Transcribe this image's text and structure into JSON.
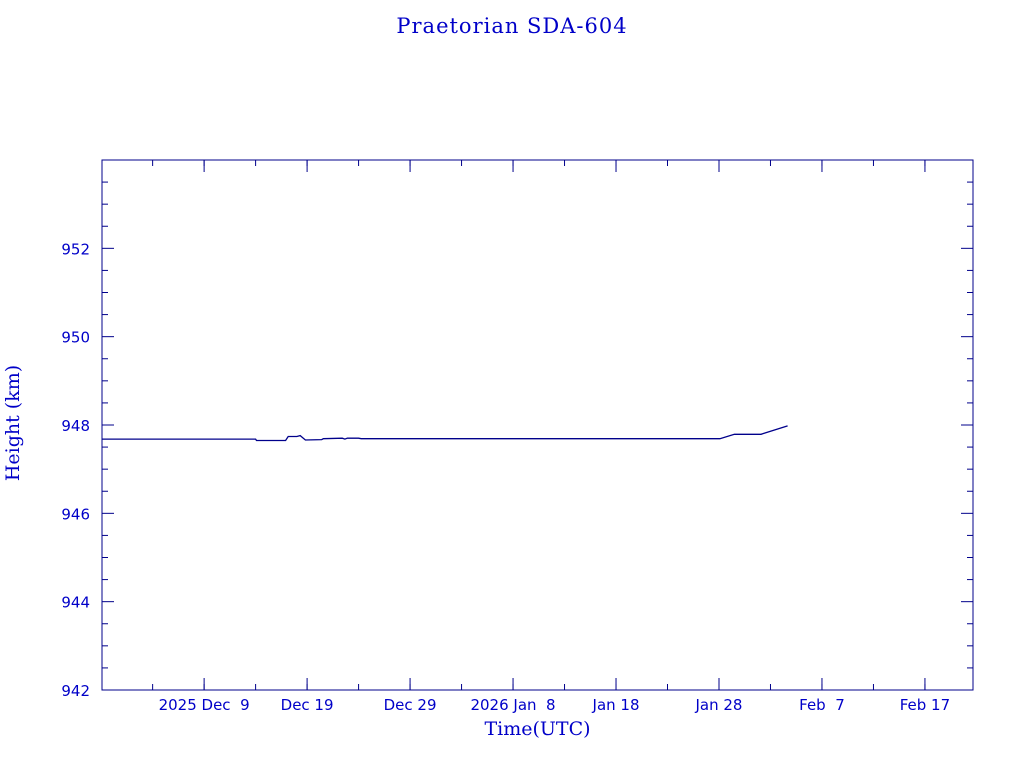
{
  "chart_data": {
    "type": "line",
    "title": "Praetorian SDA-604",
    "xlabel": "Time(UTC)",
    "ylabel": "Height (km)",
    "xlim": [
      "2025-11-29T02:00",
      "2026-02-21T16:00"
    ],
    "ylim": [
      942,
      954
    ],
    "grid": false,
    "x_ticks": [
      {
        "date": "2025-12-09",
        "label": "2025 Dec  9"
      },
      {
        "date": "2025-12-19",
        "label": "Dec 19"
      },
      {
        "date": "2025-12-29",
        "label": "Dec 29"
      },
      {
        "date": "2026-01-08",
        "label": "2026 Jan  8"
      },
      {
        "date": "2026-01-18",
        "label": "Jan 18"
      },
      {
        "date": "2026-01-28",
        "label": "Jan 28"
      },
      {
        "date": "2026-02-07",
        "label": "Feb  7"
      },
      {
        "date": "2026-02-17",
        "label": "Feb 17"
      }
    ],
    "y_ticks": [
      942,
      944,
      946,
      948,
      950,
      952
    ],
    "colors": {
      "line": "#00008b",
      "axes": "#00008b",
      "text": "#0000c8"
    },
    "series": [
      {
        "x": [
          "2025-11-29T02:00",
          "2025-12-14T00:00",
          "2025-12-14T02:00",
          "2025-12-16T22:00",
          "2025-12-17T04:00",
          "2025-12-18T00:00",
          "2025-12-18T08:00",
          "2025-12-18T20:00",
          "2025-12-20T10:00",
          "2025-12-20T14:00",
          "2025-12-22T10:00",
          "2025-12-22T16:00",
          "2025-12-22T22:00",
          "2025-12-24T00:00",
          "2025-12-24T06:00",
          "2026-01-28T02:00",
          "2026-01-29T12:00",
          "2026-02-01T02:00",
          "2026-02-03T16:00"
        ],
        "y": [
          947.68,
          947.68,
          947.65,
          947.65,
          947.74,
          947.74,
          947.76,
          947.66,
          947.67,
          947.69,
          947.7,
          947.68,
          947.7,
          947.7,
          947.69,
          947.69,
          947.79,
          947.79,
          947.98
        ]
      }
    ]
  }
}
